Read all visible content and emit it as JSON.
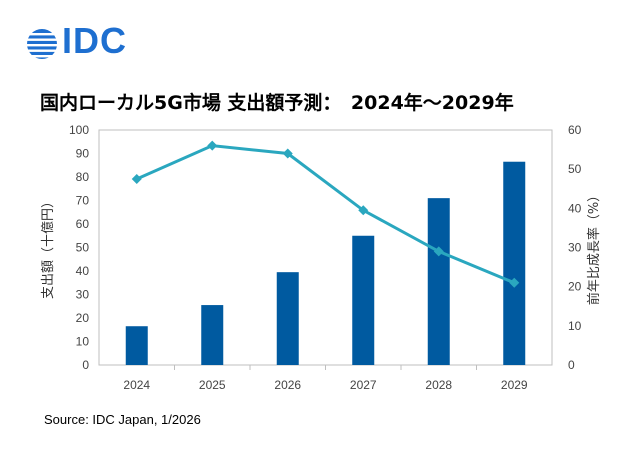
{
  "header": {
    "logo_text": "IDC",
    "logo_color": "#1e6fd0",
    "title": "国内ローカル5G市場 支出額予測：　2024年～2029年"
  },
  "footer": {
    "source": "Source: IDC Japan, 1/2026"
  },
  "chart_data": {
    "type": "bar+line",
    "categories": [
      "2024",
      "2025",
      "2026",
      "2027",
      "2028",
      "2029"
    ],
    "series": [
      {
        "name": "支出額",
        "type": "bar",
        "axis": "left",
        "color": "#005aa0",
        "values": [
          16.5,
          25.5,
          39.5,
          55,
          71,
          86.5
        ]
      },
      {
        "name": "前年比成長率",
        "type": "line",
        "axis": "right",
        "color": "#2aa7bf",
        "values": [
          47.5,
          56,
          54,
          39.5,
          29,
          21
        ]
      }
    ],
    "ylabel_left": "支出額（十億円）",
    "ylabel_right": "前年比成長率（%）",
    "ylim_left": [
      0,
      100
    ],
    "ylim_right": [
      0,
      60
    ],
    "yticks_left": [
      "0",
      "10",
      "20",
      "30",
      "40",
      "50",
      "60",
      "70",
      "80",
      "90",
      "100"
    ],
    "yticks_right": [
      "0",
      "10",
      "20",
      "30",
      "40",
      "50",
      "60"
    ],
    "grid": false,
    "legend": "none"
  }
}
